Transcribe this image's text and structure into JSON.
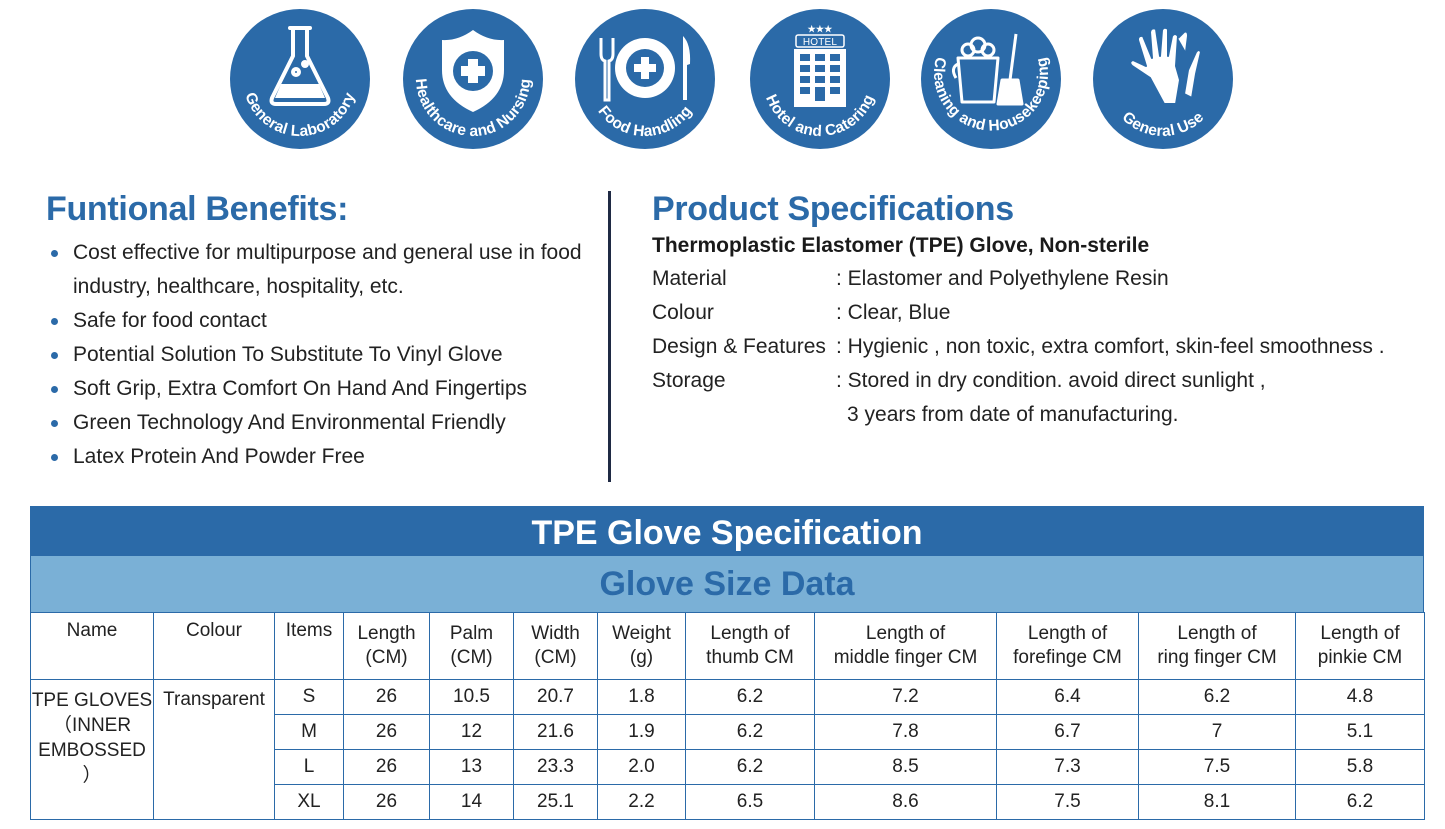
{
  "icons": [
    {
      "name": "flask-icon",
      "label": "General Laboratory"
    },
    {
      "name": "medical-shield-icon",
      "label": "Healthcare and Nursing"
    },
    {
      "name": "plate-cutlery-icon",
      "label": "Food Handling"
    },
    {
      "name": "hotel-building-icon",
      "label": "Hotel and Catering",
      "sign": "HOTEL"
    },
    {
      "name": "cleaning-bucket-icon",
      "label": "Cleaning and Housekeeping"
    },
    {
      "name": "gloves-icon",
      "label": "General Use"
    }
  ],
  "colors": {
    "brand_blue": "#2b6aa8",
    "light_blue": "#7ab0d6",
    "divider": "#1f2a44"
  },
  "benefits": {
    "title": "Funtional Benefits:",
    "items": [
      "Cost effective for multipurpose and general use in food industry, healthcare, hospitality, etc.",
      "Safe for food contact",
      "Potential Solution To Substitute To Vinyl Glove",
      "Soft Grip, Extra Comfort On Hand And Fingertips",
      "Green Technology And Environmental Friendly",
      "Latex Protein And Powder Free"
    ]
  },
  "specs": {
    "title": "Product Specifications",
    "subtitle": "Thermoplastic Elastomer (TPE) Glove, Non-sterile",
    "rows": [
      {
        "label": "Material",
        "value": ": Elastomer and Polyethylene Resin"
      },
      {
        "label": "Colour",
        "value": ": Clear, Blue"
      },
      {
        "label": "Design & Features",
        "value": ": Hygienic , non toxic, extra comfort, skin-feel smoothness ."
      },
      {
        "label": "Storage",
        "value": ": Stored in dry condition. avoid direct sunlight ,"
      }
    ],
    "storage_continued": "3 years from date of manufacturing."
  },
  "table": {
    "title": "TPE Glove Specification",
    "subtitle": "Glove Size Data",
    "headers": [
      {
        "line1": "Name",
        "line2": ""
      },
      {
        "line1": "Colour",
        "line2": ""
      },
      {
        "line1": "Items",
        "line2": ""
      },
      {
        "line1": "Length",
        "line2": "(CM)"
      },
      {
        "line1": "Palm",
        "line2": "(CM)"
      },
      {
        "line1": "Width",
        "line2": "(CM)"
      },
      {
        "line1": "Weight",
        "line2": "(g)"
      },
      {
        "line1": "Length of",
        "line2": "thumb CM"
      },
      {
        "line1": "Length of",
        "line2": "middle finger CM"
      },
      {
        "line1": "Length of",
        "line2": "forefinge CM"
      },
      {
        "line1": "Length of",
        "line2": "ring finger CM"
      },
      {
        "line1": "Length of",
        "line2": "pinkie CM"
      }
    ],
    "name_lines": [
      "TPE GLOVES",
      "（INNER",
      "EMBOSSED ）"
    ],
    "colour": "Transparent",
    "rows": [
      [
        "S",
        "26",
        "10.5",
        "20.7",
        "1.8",
        "6.2",
        "7.2",
        "6.4",
        "6.2",
        "4.8"
      ],
      [
        "M",
        "26",
        "12",
        "21.6",
        "1.9",
        "6.2",
        "7.8",
        "6.7",
        "7",
        "5.1"
      ],
      [
        "L",
        "26",
        "13",
        "23.3",
        "2.0",
        "6.2",
        "8.5",
        "7.3",
        "7.5",
        "5.8"
      ],
      [
        "XL",
        "26",
        "14",
        "25.1",
        "2.2",
        "6.5",
        "8.6",
        "7.5",
        "8.1",
        "6.2"
      ]
    ]
  }
}
